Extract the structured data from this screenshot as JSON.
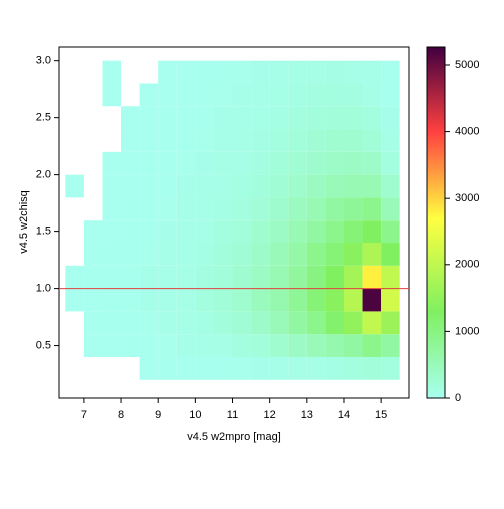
{
  "chart_data": {
    "type": "hist2d",
    "xlabel": "v4.5 w2mpro [mag]",
    "ylabel": "v4.5 w2chisq",
    "xbins": [
      6.5,
      7,
      7.5,
      8,
      8.5,
      9,
      9.5,
      10,
      10.5,
      11,
      11.5,
      12,
      12.5,
      13,
      13.5,
      14,
      14.5,
      15,
      15.5
    ],
    "ybins": [
      0.2,
      0.4,
      0.6,
      0.8,
      1.0,
      1.2,
      1.4,
      1.6,
      1.8,
      2.0,
      2.2,
      2.4,
      2.6,
      2.8,
      3.0
    ],
    "counts": [
      [
        null,
        null,
        null,
        null,
        10,
        20,
        20,
        30,
        30,
        40,
        50,
        60,
        80,
        100,
        120,
        150,
        200,
        150
      ],
      [
        null,
        10,
        10,
        20,
        30,
        40,
        60,
        80,
        100,
        150,
        200,
        300,
        400,
        500,
        600,
        700,
        900,
        700
      ],
      [
        null,
        10,
        20,
        30,
        40,
        60,
        80,
        120,
        180,
        250,
        350,
        500,
        700,
        900,
        1200,
        1500,
        2000,
        1600
      ],
      [
        10,
        10,
        20,
        30,
        50,
        70,
        100,
        150,
        220,
        300,
        450,
        600,
        800,
        1100,
        1400,
        1900,
        5200,
        2200
      ],
      [
        10,
        20,
        20,
        30,
        50,
        70,
        100,
        140,
        200,
        280,
        400,
        550,
        750,
        1000,
        1300,
        1700,
        2800,
        2000
      ],
      [
        null,
        10,
        20,
        30,
        40,
        60,
        90,
        120,
        180,
        250,
        350,
        500,
        650,
        900,
        1100,
        1400,
        1800,
        1300
      ],
      [
        null,
        10,
        10,
        20,
        30,
        50,
        70,
        100,
        150,
        200,
        300,
        400,
        550,
        700,
        900,
        1100,
        1300,
        900
      ],
      [
        null,
        null,
        10,
        20,
        30,
        40,
        60,
        80,
        120,
        160,
        230,
        320,
        430,
        550,
        700,
        800,
        900,
        500
      ],
      [
        10,
        null,
        10,
        10,
        20,
        30,
        50,
        70,
        100,
        130,
        180,
        250,
        330,
        420,
        500,
        550,
        550,
        300
      ],
      [
        null,
        null,
        10,
        10,
        20,
        30,
        40,
        50,
        80,
        100,
        140,
        200,
        260,
        320,
        380,
        400,
        350,
        150
      ],
      [
        null,
        null,
        null,
        10,
        10,
        20,
        30,
        40,
        60,
        80,
        110,
        150,
        200,
        240,
        280,
        280,
        220,
        80
      ],
      [
        null,
        null,
        null,
        10,
        10,
        20,
        20,
        30,
        50,
        60,
        90,
        120,
        150,
        180,
        200,
        200,
        150,
        50
      ],
      [
        null,
        null,
        10,
        null,
        10,
        10,
        20,
        20,
        40,
        50,
        70,
        90,
        120,
        140,
        150,
        140,
        100,
        30
      ],
      [
        null,
        null,
        10,
        null,
        null,
        10,
        10,
        20,
        30,
        40,
        50,
        70,
        90,
        100,
        110,
        100,
        60,
        20
      ]
    ],
    "xlim": [
      6.33,
      15.75
    ],
    "ylim": [
      0.04,
      3.12
    ],
    "xticks": [
      7,
      8,
      9,
      10,
      11,
      12,
      13,
      14,
      15
    ],
    "yticks": [
      0.5,
      {
        "value": 1.0,
        "label": "1.0"
      },
      1.5,
      {
        "value": 2.0,
        "label": "2.0"
      },
      2.5,
      {
        "value": 3.0,
        "label": "3.0"
      }
    ],
    "hline": {
      "value": 1.0,
      "color": "#e04040"
    },
    "clim": [
      0,
      5270
    ],
    "cticks": [
      0,
      1000,
      2000,
      3000,
      4000,
      5000
    ],
    "colormap": [
      {
        "value": 0,
        "color": "#a8fff0"
      },
      {
        "value": 1300,
        "color": "#80f060"
      },
      {
        "value": 2700,
        "color": "#ffff40"
      },
      {
        "value": 4000,
        "color": "#ff4040"
      },
      {
        "value": 5270,
        "color": "#400040"
      }
    ]
  }
}
